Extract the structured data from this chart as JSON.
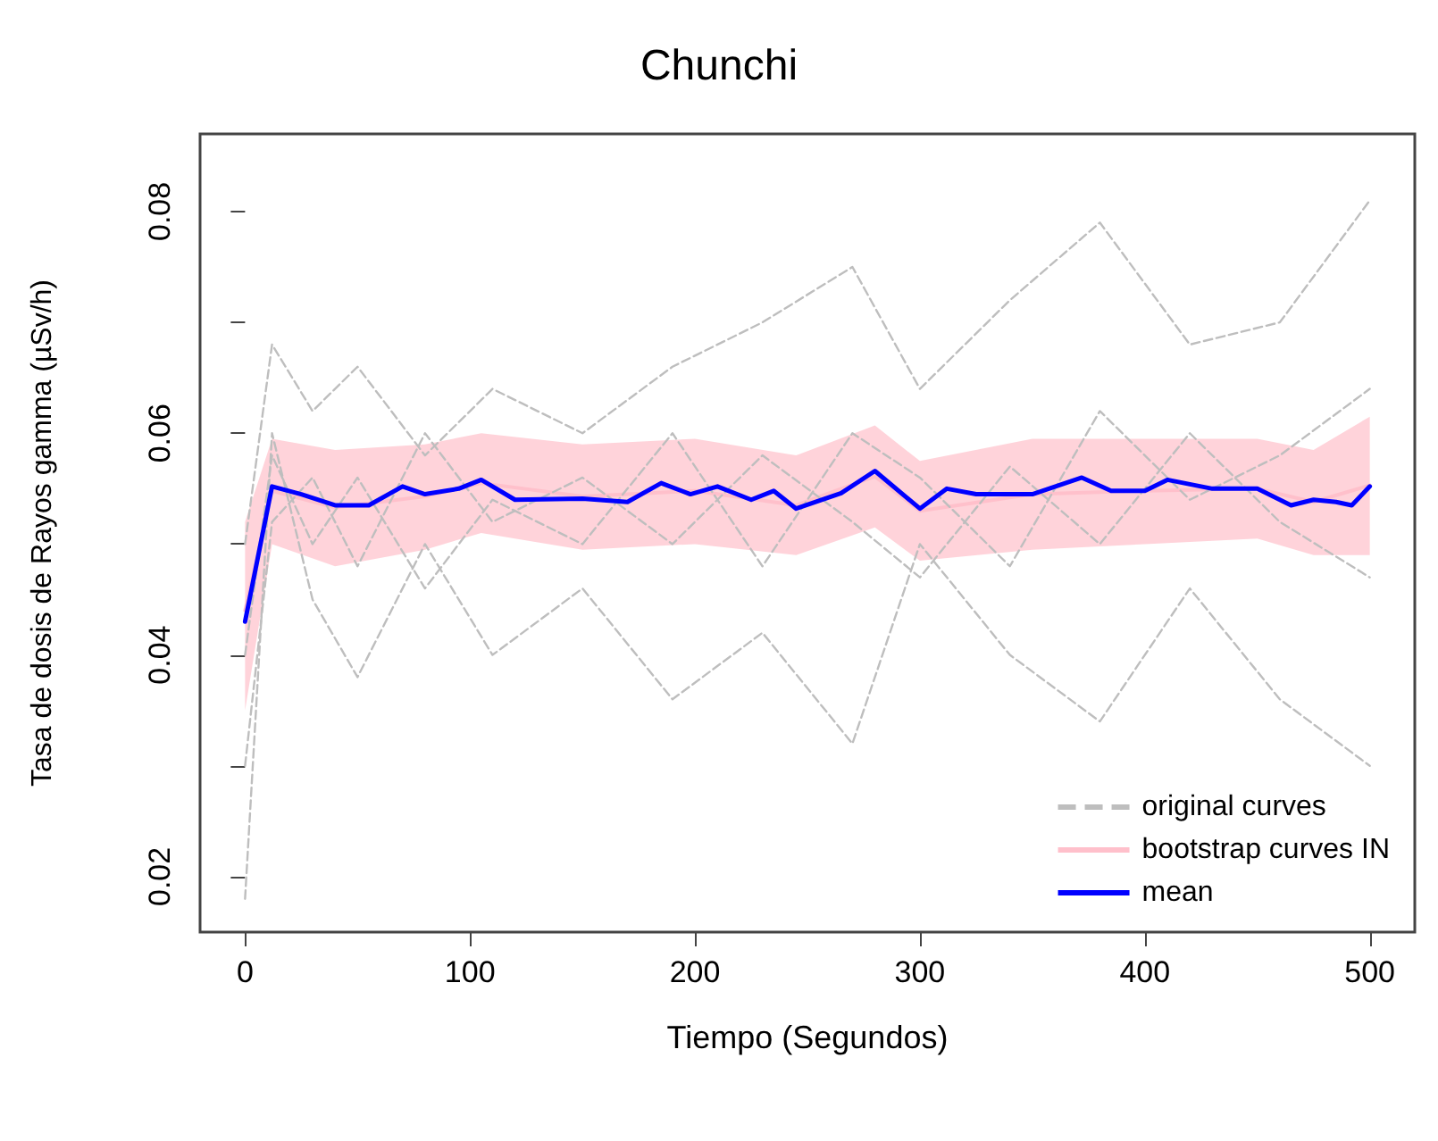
{
  "chart_data": {
    "type": "line",
    "title": "Chunchi",
    "xlabel": "Tiempo (Segundos)",
    "ylabel": "Tasa de dosis de Rayos gamma (µSv/h)",
    "xlim": [
      -20,
      520
    ],
    "xticks": [
      0,
      100,
      200,
      300,
      400,
      500
    ],
    "ylim": [
      0.015,
      0.087
    ],
    "yticks": [
      0.02,
      {
        "value": 0.03,
        "label": null
      },
      0.04,
      {
        "value": 0.05,
        "label": null
      },
      0.06,
      {
        "value": 0.07,
        "label": null
      },
      0.08
    ],
    "grid": false,
    "legend": "bottom right",
    "marker": "none",
    "series": [
      {
        "name": "original curves",
        "color": "#bebebe",
        "line_style": "dashed",
        "x": [
          0,
          12,
          30,
          50,
          80,
          110,
          150,
          190,
          230,
          270,
          300,
          340,
          380,
          420,
          460,
          500
        ],
        "values": [
          0.05,
          0.068,
          0.062,
          0.066,
          0.058,
          0.064,
          0.06,
          0.066,
          0.07,
          0.075,
          0.064,
          0.072,
          0.079,
          0.068,
          0.07,
          0.081
        ]
      },
      {
        "color": "#bebebe",
        "line_style": "dashed",
        "x": [
          0,
          12,
          30,
          50,
          80,
          110,
          150,
          190,
          230,
          270,
          300,
          340,
          380,
          420,
          460,
          500
        ],
        "values": [
          0.018,
          0.06,
          0.045,
          0.038,
          0.05,
          0.04,
          0.046,
          0.036,
          0.042,
          0.032,
          0.05,
          0.04,
          0.034,
          0.046,
          0.036,
          0.03
        ]
      },
      {
        "color": "#bebebe",
        "line_style": "dashed",
        "x": [
          0,
          12,
          30,
          50,
          80,
          110,
          150,
          190,
          230,
          270,
          300,
          340,
          380,
          420,
          460,
          500
        ],
        "values": [
          0.03,
          0.052,
          0.056,
          0.048,
          0.06,
          0.052,
          0.056,
          0.05,
          0.058,
          0.052,
          0.047,
          0.057,
          0.05,
          0.06,
          0.052,
          0.047
        ]
      },
      {
        "color": "#bebebe",
        "line_style": "dashed",
        "x": [
          0,
          12,
          30,
          50,
          80,
          110,
          150,
          190,
          230,
          270,
          300,
          340,
          380,
          420,
          460,
          500
        ],
        "values": [
          0.04,
          0.058,
          0.05,
          0.056,
          0.046,
          0.054,
          0.05,
          0.06,
          0.048,
          0.06,
          0.056,
          0.048,
          0.062,
          0.054,
          0.058,
          0.064
        ]
      },
      {
        "name": "bootstrap curves IN",
        "color": "#ffc0cb",
        "line_style": "solid",
        "x": [
          0,
          12,
          40,
          80,
          105,
          150,
          200,
          245,
          280,
          300,
          350,
          400,
          450,
          475,
          500
        ],
        "values": [
          0.044,
          0.0548,
          0.0533,
          0.0543,
          0.0555,
          0.0543,
          0.0548,
          0.0535,
          0.0561,
          0.053,
          0.0545,
          0.0548,
          0.055,
          0.0538,
          0.0553
        ],
        "lower": [
          0.035,
          0.05,
          0.048,
          0.0495,
          0.051,
          0.0495,
          0.05,
          0.049,
          0.0515,
          0.0485,
          0.0495,
          0.05,
          0.0505,
          0.049,
          0.049
        ],
        "upper": [
          0.052,
          0.0595,
          0.0585,
          0.059,
          0.06,
          0.059,
          0.0595,
          0.058,
          0.0607,
          0.0575,
          0.0595,
          0.0595,
          0.0595,
          0.0585,
          0.0615
        ]
      },
      {
        "name": "mean",
        "color": "#0000ff",
        "line_style": "solid",
        "x": [
          0,
          12,
          25,
          40,
          55,
          70,
          80,
          95,
          105,
          120,
          150,
          170,
          185,
          198,
          210,
          225,
          235,
          245,
          265,
          280,
          300,
          312,
          325,
          350,
          372,
          385,
          400,
          410,
          430,
          450,
          465,
          475,
          485,
          492,
          500
        ],
        "values": [
          0.043,
          0.0552,
          0.0545,
          0.0535,
          0.0535,
          0.0552,
          0.0545,
          0.055,
          0.0558,
          0.054,
          0.0541,
          0.0538,
          0.0555,
          0.0545,
          0.0552,
          0.054,
          0.0548,
          0.0532,
          0.0546,
          0.0566,
          0.0532,
          0.055,
          0.0545,
          0.0545,
          0.056,
          0.0548,
          0.0548,
          0.0558,
          0.055,
          0.055,
          0.0535,
          0.054,
          0.0538,
          0.0535,
          0.0552
        ]
      }
    ]
  }
}
